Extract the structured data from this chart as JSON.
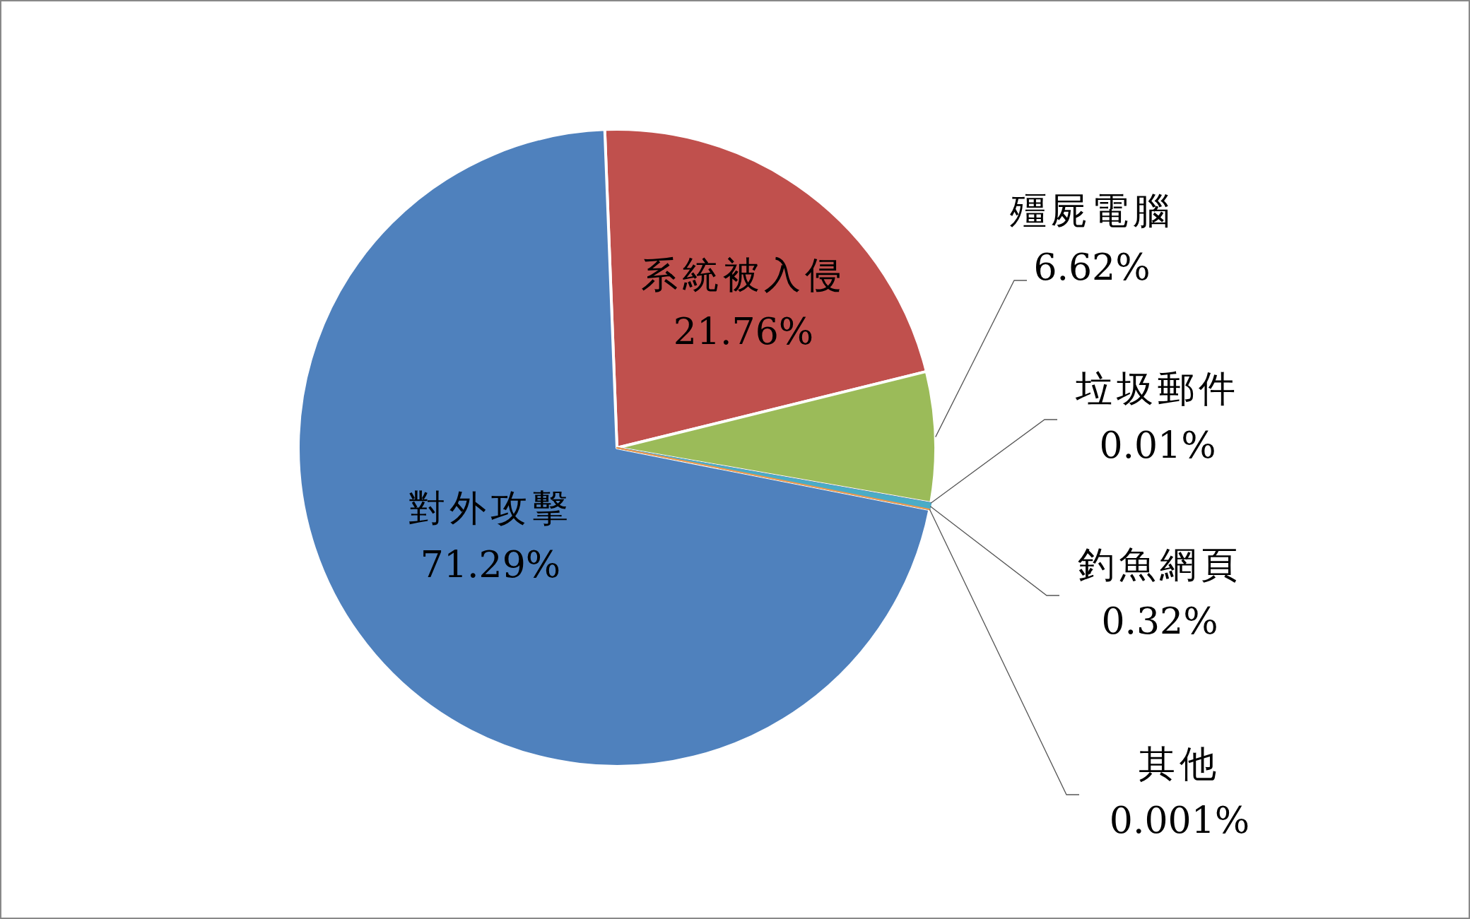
{
  "chart_data": {
    "type": "pie",
    "categories": [
      "系統被入侵",
      "殭屍電腦",
      "垃圾郵件",
      "釣魚網頁",
      "其他",
      "對外攻擊"
    ],
    "values": [
      21.76,
      6.62,
      0.01,
      0.32,
      0.001,
      71.29
    ],
    "colors": [
      "#c0504d",
      "#9bbb59",
      "#8064a2",
      "#4bacc6",
      "#f79646",
      "#4f81bd"
    ],
    "value_labels": [
      "21.76%",
      "6.62%",
      "0.01%",
      "0.32%",
      "0.001%",
      "71.29%"
    ]
  }
}
